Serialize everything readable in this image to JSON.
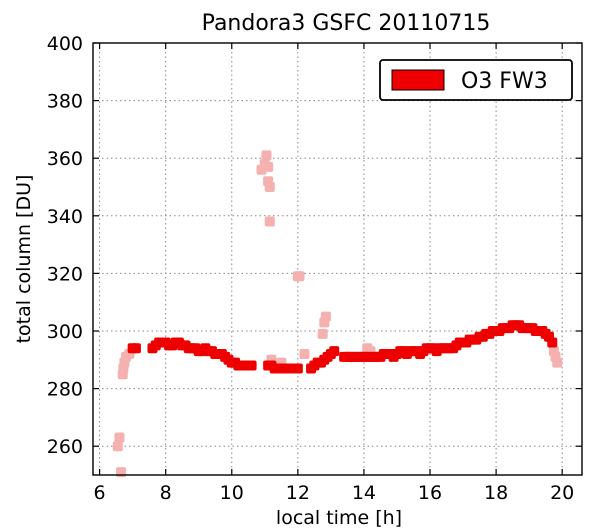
{
  "chart_data": {
    "type": "scatter",
    "title": "Pandora3 GSFC 20110715",
    "xlabel": "local time [h]",
    "ylabel": "total column [DU]",
    "xlim": [
      5.8,
      20.6
    ],
    "ylim": [
      250,
      400
    ],
    "xticks": [
      6,
      8,
      10,
      12,
      14,
      16,
      18,
      20
    ],
    "yticks": [
      260,
      280,
      300,
      320,
      340,
      360,
      380,
      400
    ],
    "grid": true,
    "legend": {
      "position": "top-right",
      "entries": [
        "O3 FW3"
      ]
    },
    "colors": {
      "main": "#ee0000",
      "faint": "#f5b0b0",
      "grid": "#888888"
    },
    "series": [
      {
        "name": "O3 FW3",
        "role": "main",
        "points": [
          [
            7.0,
            294
          ],
          [
            7.1,
            294
          ],
          [
            7.6,
            294
          ],
          [
            7.7,
            295
          ],
          [
            7.8,
            296
          ],
          [
            7.9,
            296
          ],
          [
            8.0,
            296
          ],
          [
            8.1,
            295
          ],
          [
            8.2,
            295
          ],
          [
            8.3,
            296
          ],
          [
            8.4,
            296
          ],
          [
            8.5,
            295
          ],
          [
            8.6,
            295
          ],
          [
            8.7,
            294
          ],
          [
            8.8,
            294
          ],
          [
            8.9,
            294
          ],
          [
            9.0,
            293
          ],
          [
            9.1,
            293
          ],
          [
            9.2,
            294
          ],
          [
            9.3,
            293
          ],
          [
            9.4,
            293
          ],
          [
            9.5,
            292
          ],
          [
            9.6,
            292
          ],
          [
            9.7,
            292
          ],
          [
            9.8,
            291
          ],
          [
            9.9,
            290
          ],
          [
            10.0,
            289
          ],
          [
            10.1,
            289
          ],
          [
            10.2,
            288
          ],
          [
            10.3,
            288
          ],
          [
            10.4,
            288
          ],
          [
            10.5,
            288
          ],
          [
            10.6,
            288
          ],
          [
            11.1,
            288
          ],
          [
            11.2,
            288
          ],
          [
            11.3,
            287
          ],
          [
            11.4,
            287
          ],
          [
            11.5,
            287
          ],
          [
            11.6,
            287
          ],
          [
            11.7,
            287
          ],
          [
            11.8,
            287
          ],
          [
            11.9,
            287
          ],
          [
            12.0,
            287
          ],
          [
            12.4,
            287
          ],
          [
            12.5,
            288
          ],
          [
            12.6,
            289
          ],
          [
            12.7,
            289
          ],
          [
            12.8,
            290
          ],
          [
            12.9,
            291
          ],
          [
            13.0,
            292
          ],
          [
            13.1,
            293
          ],
          [
            13.4,
            291
          ],
          [
            13.5,
            291
          ],
          [
            13.6,
            291
          ],
          [
            13.7,
            291
          ],
          [
            13.8,
            291
          ],
          [
            13.9,
            291
          ],
          [
            14.0,
            291
          ],
          [
            14.1,
            291
          ],
          [
            14.2,
            291
          ],
          [
            14.3,
            291
          ],
          [
            14.4,
            291
          ],
          [
            14.5,
            291
          ],
          [
            14.6,
            292
          ],
          [
            14.7,
            292
          ],
          [
            14.8,
            292
          ],
          [
            14.9,
            291
          ],
          [
            15.0,
            292
          ],
          [
            15.1,
            293
          ],
          [
            15.2,
            293
          ],
          [
            15.3,
            292
          ],
          [
            15.4,
            293
          ],
          [
            15.5,
            293
          ],
          [
            15.6,
            293
          ],
          [
            15.7,
            292
          ],
          [
            15.8,
            293
          ],
          [
            15.9,
            294
          ],
          [
            16.0,
            294
          ],
          [
            16.1,
            294
          ],
          [
            16.2,
            293
          ],
          [
            16.3,
            294
          ],
          [
            16.4,
            294
          ],
          [
            16.5,
            294
          ],
          [
            16.6,
            294
          ],
          [
            16.7,
            294
          ],
          [
            16.8,
            295
          ],
          [
            16.9,
            296
          ],
          [
            17.0,
            296
          ],
          [
            17.1,
            296
          ],
          [
            17.2,
            297
          ],
          [
            17.3,
            297
          ],
          [
            17.4,
            297
          ],
          [
            17.5,
            298
          ],
          [
            17.6,
            298
          ],
          [
            17.7,
            299
          ],
          [
            17.8,
            299
          ],
          [
            17.9,
            300
          ],
          [
            18.0,
            300
          ],
          [
            18.1,
            300
          ],
          [
            18.2,
            301
          ],
          [
            18.3,
            301
          ],
          [
            18.4,
            301
          ],
          [
            18.5,
            302
          ],
          [
            18.6,
            302
          ],
          [
            18.7,
            302
          ],
          [
            18.8,
            301
          ],
          [
            18.9,
            301
          ],
          [
            19.0,
            301
          ],
          [
            19.1,
            301
          ],
          [
            19.2,
            300
          ],
          [
            19.3,
            300
          ],
          [
            19.4,
            300
          ],
          [
            19.5,
            299
          ],
          [
            19.6,
            298
          ],
          [
            19.7,
            296
          ]
        ]
      },
      {
        "name": "",
        "role": "faint",
        "points": [
          [
            6.55,
            260
          ],
          [
            6.6,
            263
          ],
          [
            6.65,
            251
          ],
          [
            6.7,
            285
          ],
          [
            6.72,
            287
          ],
          [
            6.75,
            289
          ],
          [
            6.8,
            291
          ],
          [
            6.9,
            292
          ],
          [
            10.9,
            356
          ],
          [
            11.0,
            358
          ],
          [
            11.05,
            361
          ],
          [
            11.1,
            357
          ],
          [
            11.1,
            352
          ],
          [
            11.15,
            350
          ],
          [
            11.15,
            338
          ],
          [
            11.2,
            290
          ],
          [
            11.5,
            289
          ],
          [
            12.0,
            319
          ],
          [
            12.05,
            319
          ],
          [
            12.2,
            292
          ],
          [
            12.75,
            299
          ],
          [
            12.8,
            303
          ],
          [
            12.85,
            305
          ],
          [
            14.1,
            294
          ],
          [
            14.2,
            293
          ],
          [
            19.75,
            293
          ],
          [
            19.8,
            291
          ],
          [
            19.85,
            289
          ]
        ]
      }
    ]
  }
}
